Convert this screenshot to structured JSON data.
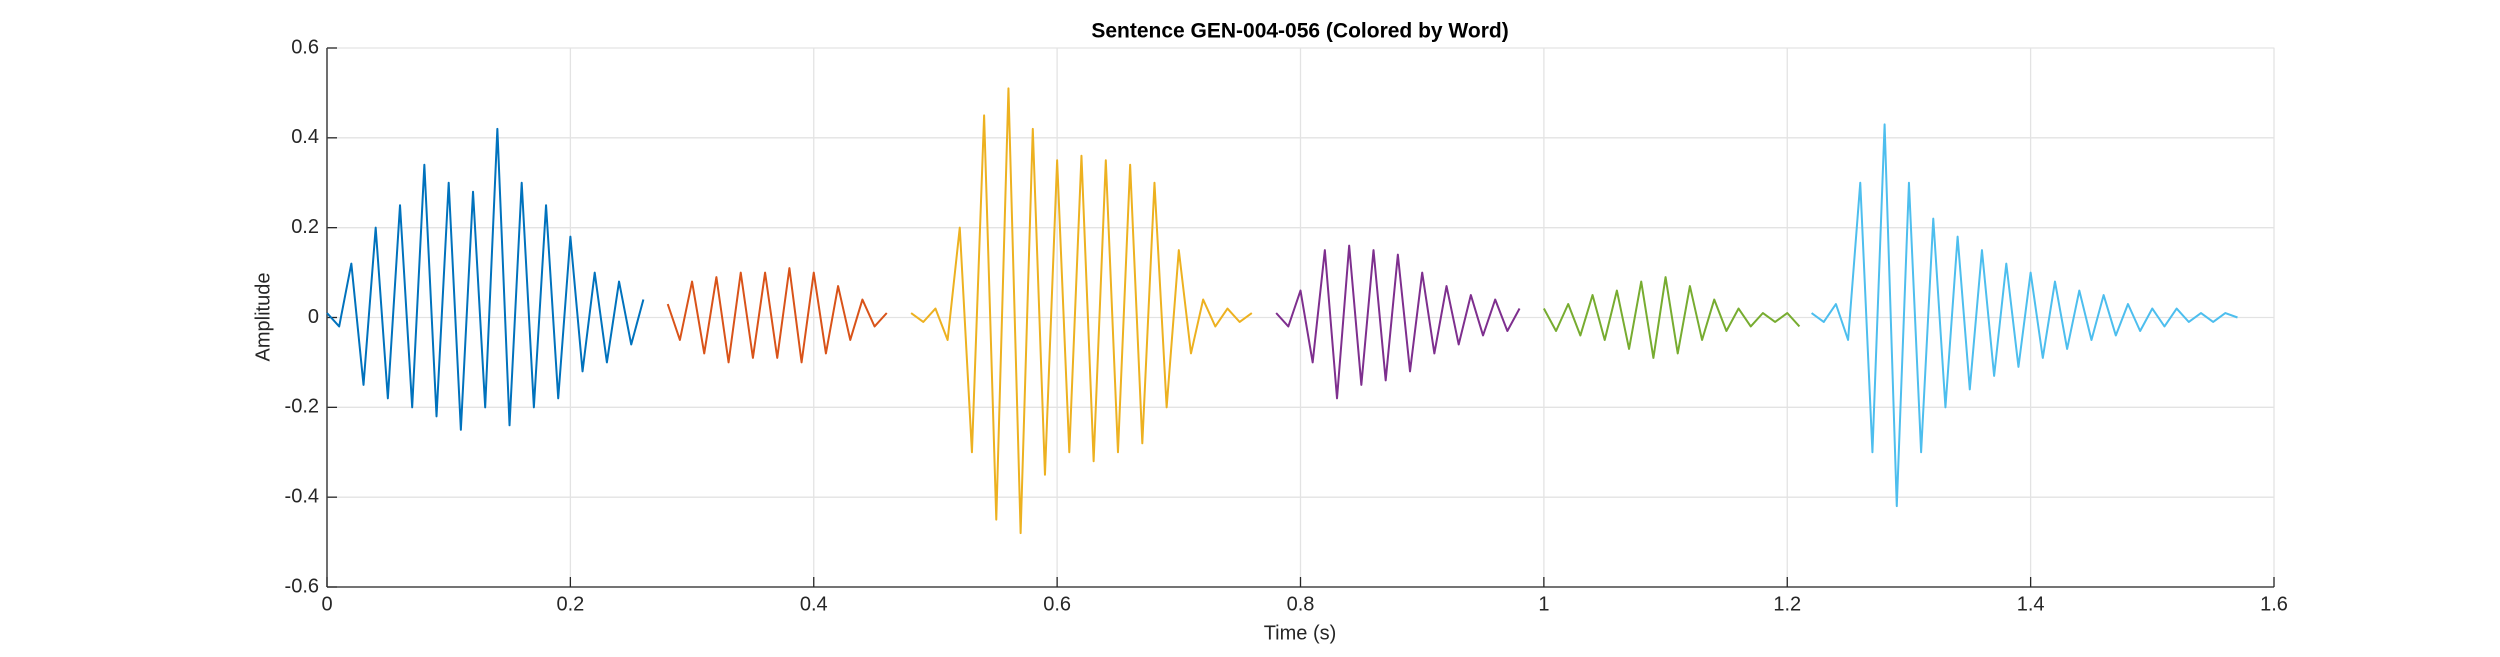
{
  "chart_data": {
    "type": "line",
    "title": "Sentence GEN-004-056 (Colored by Word)",
    "x_label": "Time (s)",
    "y_label": "Amplitude",
    "xlim": [
      0,
      1.6
    ],
    "ylim": [
      -0.6,
      0.6
    ],
    "xticks": [
      0,
      0.2,
      0.4,
      0.6,
      0.8,
      1,
      1.2,
      1.4,
      1.6
    ],
    "yticks": [
      -0.6,
      -0.4,
      -0.2,
      0,
      0.2,
      0.4,
      0.6
    ],
    "grid": true,
    "series": [
      {
        "color": "#0072BD",
        "x": [
          0,
          0.01,
          0.02,
          0.03,
          0.04,
          0.05,
          0.06,
          0.07,
          0.08,
          0.09,
          0.1,
          0.11,
          0.12,
          0.13,
          0.14,
          0.15,
          0.16,
          0.17,
          0.18,
          0.19,
          0.2,
          0.21,
          0.22,
          0.23,
          0.24,
          0.25,
          0.26
        ],
        "values": [
          0.01,
          -0.02,
          0.12,
          -0.15,
          0.2,
          -0.18,
          0.25,
          -0.2,
          0.34,
          -0.22,
          0.3,
          -0.25,
          0.28,
          -0.2,
          0.42,
          -0.24,
          0.3,
          -0.2,
          0.25,
          -0.18,
          0.18,
          -0.12,
          0.1,
          -0.1,
          0.08,
          -0.06,
          0.04
        ]
      },
      {
        "color": "#D95319",
        "x": [
          0.28,
          0.29,
          0.3,
          0.31,
          0.32,
          0.33,
          0.34,
          0.35,
          0.36,
          0.37,
          0.38,
          0.39,
          0.4,
          0.41,
          0.42,
          0.43,
          0.44,
          0.45,
          0.46
        ],
        "values": [
          0.03,
          -0.05,
          0.08,
          -0.08,
          0.09,
          -0.1,
          0.1,
          -0.09,
          0.1,
          -0.09,
          0.11,
          -0.1,
          0.1,
          -0.08,
          0.07,
          -0.05,
          0.04,
          -0.02,
          0.01
        ]
      },
      {
        "color": "#EDB120",
        "x": [
          0.48,
          0.49,
          0.5,
          0.51,
          0.52,
          0.53,
          0.54,
          0.55,
          0.56,
          0.57,
          0.58,
          0.59,
          0.6,
          0.61,
          0.62,
          0.63,
          0.64,
          0.65,
          0.66,
          0.67,
          0.68,
          0.69,
          0.7,
          0.71,
          0.72,
          0.73,
          0.74,
          0.75,
          0.76
        ],
        "values": [
          0.01,
          -0.01,
          0.02,
          -0.05,
          0.2,
          -0.3,
          0.45,
          -0.45,
          0.51,
          -0.48,
          0.42,
          -0.35,
          0.35,
          -0.3,
          0.36,
          -0.32,
          0.35,
          -0.3,
          0.34,
          -0.28,
          0.3,
          -0.2,
          0.15,
          -0.08,
          0.04,
          -0.02,
          0.02,
          -0.01,
          0.01
        ]
      },
      {
        "color": "#7E2F8E",
        "x": [
          0.78,
          0.79,
          0.8,
          0.81,
          0.82,
          0.83,
          0.84,
          0.85,
          0.86,
          0.87,
          0.88,
          0.89,
          0.9,
          0.91,
          0.92,
          0.93,
          0.94,
          0.95,
          0.96,
          0.97,
          0.98
        ],
        "values": [
          0.01,
          -0.02,
          0.06,
          -0.1,
          0.15,
          -0.18,
          0.16,
          -0.15,
          0.15,
          -0.14,
          0.14,
          -0.12,
          0.1,
          -0.08,
          0.07,
          -0.06,
          0.05,
          -0.04,
          0.04,
          -0.03,
          0.02
        ]
      },
      {
        "color": "#77AC30",
        "x": [
          1,
          1.01,
          1.02,
          1.03,
          1.04,
          1.05,
          1.06,
          1.07,
          1.08,
          1.09,
          1.1,
          1.11,
          1.12,
          1.13,
          1.14,
          1.15,
          1.16,
          1.17,
          1.18,
          1.19,
          1.2,
          1.21
        ],
        "values": [
          0.02,
          -0.03,
          0.03,
          -0.04,
          0.05,
          -0.05,
          0.06,
          -0.07,
          0.08,
          -0.09,
          0.09,
          -0.08,
          0.07,
          -0.05,
          0.04,
          -0.03,
          0.02,
          -0.02,
          0.01,
          -0.01,
          0.01,
          -0.02
        ]
      },
      {
        "color": "#4DBEEE",
        "x": [
          1.22,
          1.23,
          1.24,
          1.25,
          1.26,
          1.27,
          1.28,
          1.29,
          1.3,
          1.31,
          1.32,
          1.33,
          1.34,
          1.35,
          1.36,
          1.37,
          1.38,
          1.39,
          1.4,
          1.41,
          1.42,
          1.43,
          1.44,
          1.45,
          1.46,
          1.47,
          1.48,
          1.49,
          1.5,
          1.51,
          1.52,
          1.53,
          1.54,
          1.55,
          1.56,
          1.57
        ],
        "values": [
          0.01,
          -0.01,
          0.03,
          -0.05,
          0.3,
          -0.3,
          0.43,
          -0.42,
          0.3,
          -0.3,
          0.22,
          -0.2,
          0.18,
          -0.16,
          0.15,
          -0.13,
          0.12,
          -0.11,
          0.1,
          -0.09,
          0.08,
          -0.07,
          0.06,
          -0.05,
          0.05,
          -0.04,
          0.03,
          -0.03,
          0.02,
          -0.02,
          0.02,
          -0.01,
          0.01,
          -0.01,
          0.01,
          0
        ]
      }
    ]
  }
}
